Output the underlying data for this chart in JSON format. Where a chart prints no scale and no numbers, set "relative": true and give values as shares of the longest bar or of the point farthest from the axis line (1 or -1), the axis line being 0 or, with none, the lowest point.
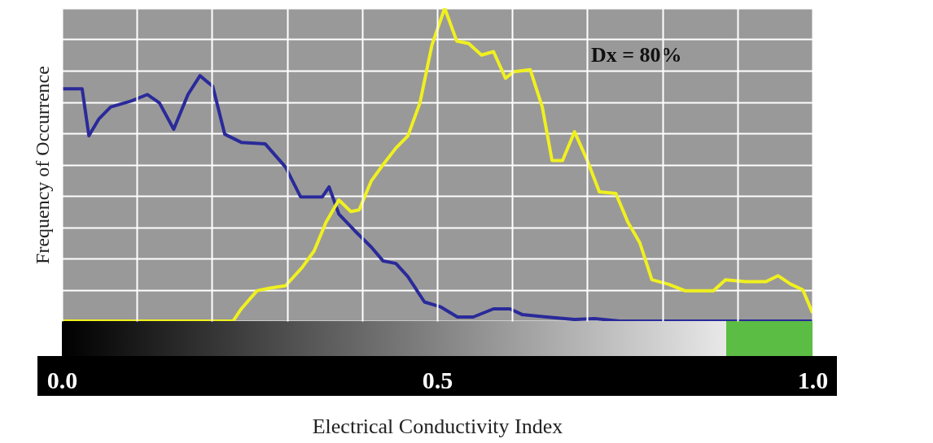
{
  "chart_data": {
    "type": "line",
    "relative": true,
    "xlabel": "Electrical Conductivity Index",
    "ylabel": "Frequency of Occurrence",
    "annotations": [
      "Dx = 80%"
    ],
    "xlim": [
      0,
      1
    ],
    "xticks": [
      {
        "value": 0,
        "label": "0.0"
      },
      {
        "value": 0.1,
        "label": null
      },
      {
        "value": 0.2,
        "label": null
      },
      {
        "value": 0.3,
        "label": null
      },
      {
        "value": 0.4,
        "label": null
      },
      {
        "value": 0.5,
        "label": "0.5"
      },
      {
        "value": 0.6,
        "label": null
      },
      {
        "value": 0.7,
        "label": null
      },
      {
        "value": 0.8,
        "label": null
      },
      {
        "value": 0.9,
        "label": null
      },
      {
        "value": 1,
        "label": "1.0"
      }
    ],
    "grid": true,
    "series": [
      {
        "color": "#2a2a9a",
        "x": [
          0,
          0.027,
          0.036,
          0.049,
          0.065,
          0.092,
          0.114,
          0.13,
          0.149,
          0.168,
          0.184,
          0.201,
          0.217,
          0.239,
          0.271,
          0.298,
          0.318,
          0.347,
          0.356,
          0.369,
          0.39,
          0.412,
          0.428,
          0.445,
          0.461,
          0.483,
          0.505,
          0.527,
          0.548,
          0.575,
          0.597,
          0.613,
          0.646,
          0.683,
          0.71,
          0.743,
          1
        ],
        "values": [
          0.742,
          0.742,
          0.592,
          0.645,
          0.684,
          0.703,
          0.724,
          0.697,
          0.613,
          0.724,
          0.784,
          0.75,
          0.597,
          0.571,
          0.566,
          0.492,
          0.397,
          0.397,
          0.429,
          0.342,
          0.289,
          0.237,
          0.192,
          0.184,
          0.142,
          0.061,
          0.045,
          0.013,
          0.013,
          0.039,
          0.039,
          0.021,
          0.013,
          0.005,
          0.008,
          0,
          0
        ]
      },
      {
        "color": "#f0f020",
        "x": [
          0,
          0.228,
          0.239,
          0.26,
          0.277,
          0.298,
          0.32,
          0.336,
          0.352,
          0.369,
          0.385,
          0.396,
          0.412,
          0.428,
          0.445,
          0.461,
          0.477,
          0.493,
          0.51,
          0.526,
          0.542,
          0.559,
          0.575,
          0.591,
          0.602,
          0.624,
          0.64,
          0.653,
          0.667,
          0.683,
          0.7,
          0.716,
          0.738,
          0.754,
          0.77,
          0.786,
          0.808,
          0.83,
          0.868,
          0.884,
          0.911,
          0.938,
          0.954,
          0.971,
          0.987,
          1
        ],
        "values": [
          0,
          0,
          0.039,
          0.097,
          0.105,
          0.113,
          0.171,
          0.224,
          0.316,
          0.387,
          0.35,
          0.355,
          0.447,
          0.5,
          0.553,
          0.592,
          0.697,
          0.882,
          1,
          0.895,
          0.887,
          0.85,
          0.861,
          0.776,
          0.797,
          0.803,
          0.684,
          0.513,
          0.513,
          0.605,
          0.513,
          0.413,
          0.408,
          0.316,
          0.25,
          0.132,
          0.118,
          0.097,
          0.097,
          0.132,
          0.126,
          0.126,
          0.145,
          0.118,
          0.1,
          0.026
        ]
      }
    ]
  }
}
